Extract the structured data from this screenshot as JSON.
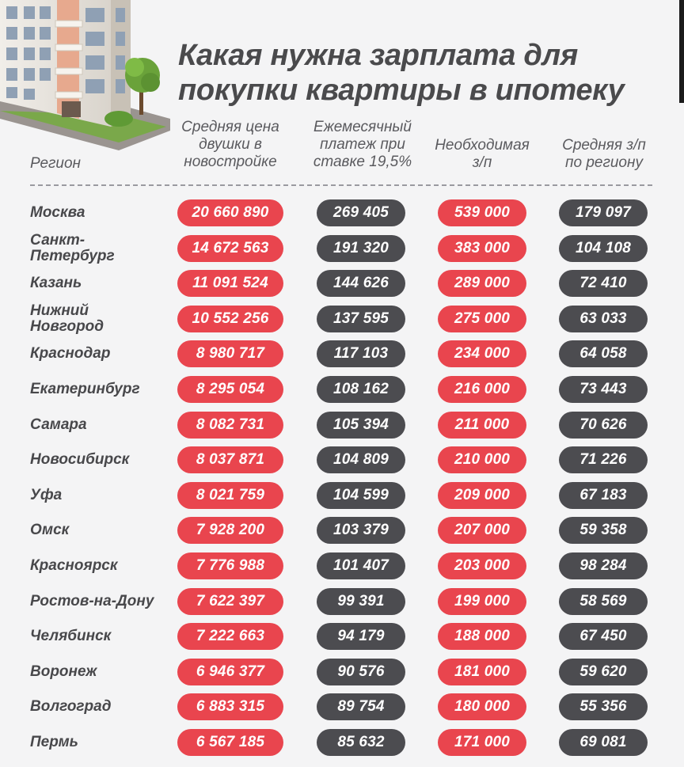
{
  "title": {
    "line1": "Какая нужна зарплата для",
    "line2": "покупки квартиры в ипотеку"
  },
  "headers": {
    "region": "Регион",
    "price": "Средняя цена\nдвушки в\nновостройке",
    "payment": "Ежемесячный\nплатеж при\nставке 19,5%",
    "required_salary": "Необходимая\nз/п",
    "avg_salary": "Средняя з/п\nпо региону"
  },
  "colors": {
    "red_pill": "#e9454e",
    "dark_pill": "#4c4c50",
    "text": "#48484b",
    "background": "#f4f4f5"
  },
  "chart_data": {
    "type": "table",
    "columns": [
      "Регион",
      "Средняя цена двушки в новостройке",
      "Ежемесячный платеж при ставке 19,5%",
      "Необходимая з/п",
      "Средняя з/п по региону"
    ],
    "rows": [
      {
        "region": "Москва",
        "price": "20 660 890",
        "payment": "269 405",
        "required": "539 000",
        "avg": "179 097"
      },
      {
        "region": "Санкт-\nПетербург",
        "price": "14 672 563",
        "payment": "191 320",
        "required": "383 000",
        "avg": "104 108"
      },
      {
        "region": "Казань",
        "price": "11 091 524",
        "payment": "144 626",
        "required": "289 000",
        "avg": "72 410"
      },
      {
        "region": "Нижний\nНовгород",
        "price": "10 552 256",
        "payment": "137 595",
        "required": "275 000",
        "avg": "63 033"
      },
      {
        "region": "Краснодар",
        "price": "8 980 717",
        "payment": "117 103",
        "required": "234 000",
        "avg": "64 058"
      },
      {
        "region": "Екатеринбург",
        "price": "8 295 054",
        "payment": "108 162",
        "required": "216 000",
        "avg": "73 443"
      },
      {
        "region": "Самара",
        "price": "8 082 731",
        "payment": "105 394",
        "required": "211 000",
        "avg": "70 626"
      },
      {
        "region": "Новосибирск",
        "price": "8 037 871",
        "payment": "104 809",
        "required": "210 000",
        "avg": "71 226"
      },
      {
        "region": "Уфа",
        "price": "8 021 759",
        "payment": "104 599",
        "required": "209 000",
        "avg": "67 183"
      },
      {
        "region": "Омск",
        "price": "7 928 200",
        "payment": "103 379",
        "required": "207 000",
        "avg": "59 358"
      },
      {
        "region": "Красноярск",
        "price": "7 776 988",
        "payment": "101 407",
        "required": "203 000",
        "avg": "98 284"
      },
      {
        "region": "Ростов-на-Дону",
        "price": "7 622 397",
        "payment": "99 391",
        "required": "199 000",
        "avg": "58 569"
      },
      {
        "region": "Челябинск",
        "price": "7 222 663",
        "payment": "94 179",
        "required": "188 000",
        "avg": "67 450"
      },
      {
        "region": "Воронеж",
        "price": "6 946 377",
        "payment": "90 576",
        "required": "181 000",
        "avg": "59 620"
      },
      {
        "region": "Волгоград",
        "price": "6 883 315",
        "payment": "89 754",
        "required": "180 000",
        "avg": "55 356"
      },
      {
        "region": "Пермь",
        "price": "6 567 185",
        "payment": "85 632",
        "required": "171 000",
        "avg": "69 081"
      }
    ]
  }
}
